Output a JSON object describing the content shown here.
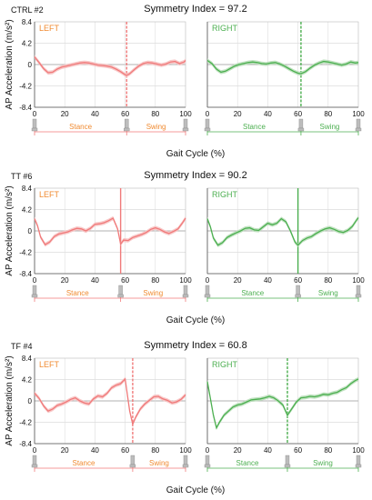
{
  "colors": {
    "left": "#f07a7a",
    "left_label": "#f08a30",
    "right": "#4caf50",
    "right_label": "#4caf50",
    "axis": "#555555",
    "grid": "#dddddd",
    "band_left": "#f7c0c0",
    "band_right": "#b6ddb6"
  },
  "chart_data": [
    {
      "type": "line",
      "subject": "CTRL #2",
      "title": "Symmetry Index = 97.2",
      "ylabel": "AP Acceleration (m/s²)",
      "xlabel": "Gait Cycle (%)",
      "y_ticks": [
        "8.4",
        "4.2",
        "0",
        "-4.2",
        "-8.4"
      ],
      "x_ticks": [
        "0",
        "20",
        "40",
        "60",
        "80",
        "100"
      ],
      "xlim": [
        0,
        100
      ],
      "ylim": [
        -8.4,
        8.4
      ],
      "grid": true,
      "left": {
        "label": "LEFT",
        "phase_labels": [
          "Stance",
          "Swing"
        ],
        "toe_off": 61,
        "x": [
          0,
          3,
          6,
          9,
          12,
          15,
          18,
          21,
          24,
          27,
          30,
          33,
          36,
          39,
          42,
          45,
          48,
          51,
          54,
          57,
          60,
          61,
          63,
          66,
          69,
          72,
          75,
          78,
          81,
          84,
          87,
          90,
          93,
          96,
          99,
          100
        ],
        "y": [
          1.5,
          0.4,
          -0.8,
          -1.6,
          -1.5,
          -0.9,
          -0.5,
          -0.3,
          -0.1,
          0.1,
          0.3,
          0.4,
          0.3,
          0.1,
          -0.1,
          -0.2,
          -0.3,
          -0.5,
          -0.9,
          -1.4,
          -2.0,
          -2.1,
          -1.8,
          -1.0,
          -0.3,
          0.2,
          0.4,
          0.3,
          0.1,
          -0.1,
          0.1,
          0.5,
          0.6,
          0.2,
          0.5,
          0.8
        ]
      },
      "right": {
        "label": "RIGHT",
        "phase_labels": [
          "Stance",
          "Swing"
        ],
        "toe_off": 62,
        "x": [
          0,
          3,
          6,
          9,
          12,
          15,
          18,
          21,
          24,
          27,
          30,
          33,
          36,
          39,
          42,
          45,
          48,
          51,
          54,
          57,
          60,
          62,
          65,
          68,
          71,
          74,
          77,
          80,
          83,
          86,
          89,
          92,
          95,
          98,
          100
        ],
        "y": [
          0.8,
          0.2,
          -0.9,
          -1.5,
          -1.3,
          -0.8,
          -0.3,
          0.0,
          0.2,
          0.4,
          0.5,
          0.4,
          0.2,
          0.1,
          0.3,
          0.4,
          0.1,
          -0.3,
          -0.8,
          -1.3,
          -1.7,
          -1.8,
          -1.4,
          -0.7,
          -0.1,
          0.3,
          0.6,
          0.5,
          0.3,
          0.1,
          -0.1,
          0.1,
          0.5,
          0.3,
          0.4
        ]
      }
    },
    {
      "type": "line",
      "subject": "TT #6",
      "title": "Symmetry Index = 90.2",
      "ylabel": "AP Acceleration (m/s²)",
      "xlabel": "Gait Cycle (%)",
      "y_ticks": [
        "8.4",
        "4.2",
        "0",
        "-4.2",
        "-8.4"
      ],
      "x_ticks": [
        "0",
        "20",
        "40",
        "60",
        "80",
        "100"
      ],
      "xlim": [
        0,
        100
      ],
      "ylim": [
        -8.4,
        8.4
      ],
      "grid": true,
      "left": {
        "label": "LEFT",
        "phase_labels": [
          "Stance",
          "Swing"
        ],
        "toe_off": 57,
        "x": [
          0,
          2,
          4,
          7,
          10,
          13,
          16,
          19,
          22,
          25,
          28,
          31,
          34,
          37,
          40,
          43,
          46,
          49,
          52,
          55,
          57,
          59,
          62,
          65,
          68,
          71,
          74,
          77,
          80,
          83,
          86,
          89,
          92,
          95,
          98,
          100
        ],
        "y": [
          2.4,
          1.0,
          -1.2,
          -2.7,
          -2.2,
          -1.1,
          -0.6,
          -0.4,
          -0.2,
          0.2,
          0.5,
          0.4,
          0.0,
          0.5,
          1.3,
          1.4,
          1.6,
          2.0,
          2.5,
          0.4,
          -2.6,
          -1.8,
          -1.9,
          -1.3,
          -1.0,
          -0.7,
          -0.3,
          0.3,
          0.6,
          0.3,
          -0.2,
          -0.5,
          -0.1,
          0.4,
          1.6,
          2.5
        ]
      },
      "right": {
        "label": "RIGHT",
        "phase_labels": [
          "Stance",
          "Swing"
        ],
        "toe_off": 60,
        "x": [
          0,
          2,
          4,
          7,
          10,
          13,
          16,
          19,
          22,
          25,
          28,
          31,
          34,
          37,
          40,
          43,
          46,
          49,
          52,
          55,
          58,
          60,
          63,
          66,
          69,
          72,
          75,
          78,
          81,
          84,
          87,
          90,
          93,
          96,
          99,
          100
        ],
        "y": [
          2.4,
          0.8,
          -1.4,
          -2.8,
          -2.3,
          -1.3,
          -0.8,
          -0.4,
          0.0,
          0.5,
          0.6,
          0.2,
          0.1,
          0.8,
          1.5,
          1.2,
          1.5,
          2.4,
          1.8,
          0.0,
          -2.2,
          -2.8,
          -1.9,
          -1.4,
          -1.1,
          -0.5,
          0.0,
          0.4,
          0.6,
          0.3,
          -0.1,
          -0.3,
          0.1,
          0.9,
          2.2,
          2.6
        ]
      }
    },
    {
      "type": "line",
      "subject": "TF #4",
      "title": "Symmetry Index = 60.8",
      "ylabel": "AP Acceleration (m/s²)",
      "xlabel": "Gait Cycle (%)",
      "y_ticks": [
        "8.4",
        "4.2",
        "0",
        "-4.2",
        "-8.4"
      ],
      "x_ticks": [
        "0",
        "20",
        "40",
        "60",
        "80",
        "100"
      ],
      "xlim": [
        0,
        100
      ],
      "ylim": [
        -8.4,
        8.4
      ],
      "grid": true,
      "left": {
        "label": "LEFT",
        "phase_labels": [
          "Stance",
          "Swing"
        ],
        "toe_off": 65,
        "x": [
          0,
          3,
          6,
          9,
          12,
          15,
          18,
          21,
          24,
          27,
          30,
          33,
          36,
          39,
          42,
          45,
          48,
          51,
          54,
          57,
          60,
          63,
          65,
          67,
          70,
          73,
          76,
          79,
          82,
          85,
          88,
          91,
          94,
          97,
          100
        ],
        "y": [
          1.5,
          0.5,
          -1.0,
          -2.0,
          -1.6,
          -0.9,
          -0.6,
          -0.2,
          0.3,
          0.6,
          0.0,
          -0.4,
          -0.6,
          0.4,
          1.0,
          0.8,
          1.5,
          2.6,
          3.1,
          3.4,
          4.3,
          -2.0,
          -4.6,
          -3.2,
          -1.6,
          -0.6,
          0.1,
          0.8,
          0.9,
          0.4,
          0.1,
          -0.4,
          -0.2,
          0.3,
          1.2
        ]
      },
      "right": {
        "label": "RIGHT",
        "phase_labels": [
          "Stance",
          "Swing"
        ],
        "toe_off": 53,
        "x": [
          0,
          2,
          4,
          6,
          8,
          11,
          14,
          17,
          20,
          23,
          26,
          29,
          32,
          35,
          38,
          41,
          44,
          47,
          50,
          53,
          56,
          59,
          62,
          65,
          68,
          71,
          74,
          77,
          80,
          83,
          86,
          89,
          92,
          95,
          98,
          100
        ],
        "y": [
          3.8,
          0.5,
          -2.8,
          -5.3,
          -4.2,
          -2.8,
          -2.0,
          -1.2,
          -0.8,
          -0.6,
          -0.2,
          0.2,
          0.3,
          0.4,
          0.6,
          0.9,
          0.6,
          0.0,
          -0.8,
          -2.8,
          -1.5,
          -0.2,
          0.6,
          0.7,
          0.9,
          0.8,
          1.0,
          1.3,
          1.2,
          1.5,
          1.7,
          2.2,
          2.6,
          3.4,
          4.0,
          4.3
        ]
      }
    }
  ]
}
